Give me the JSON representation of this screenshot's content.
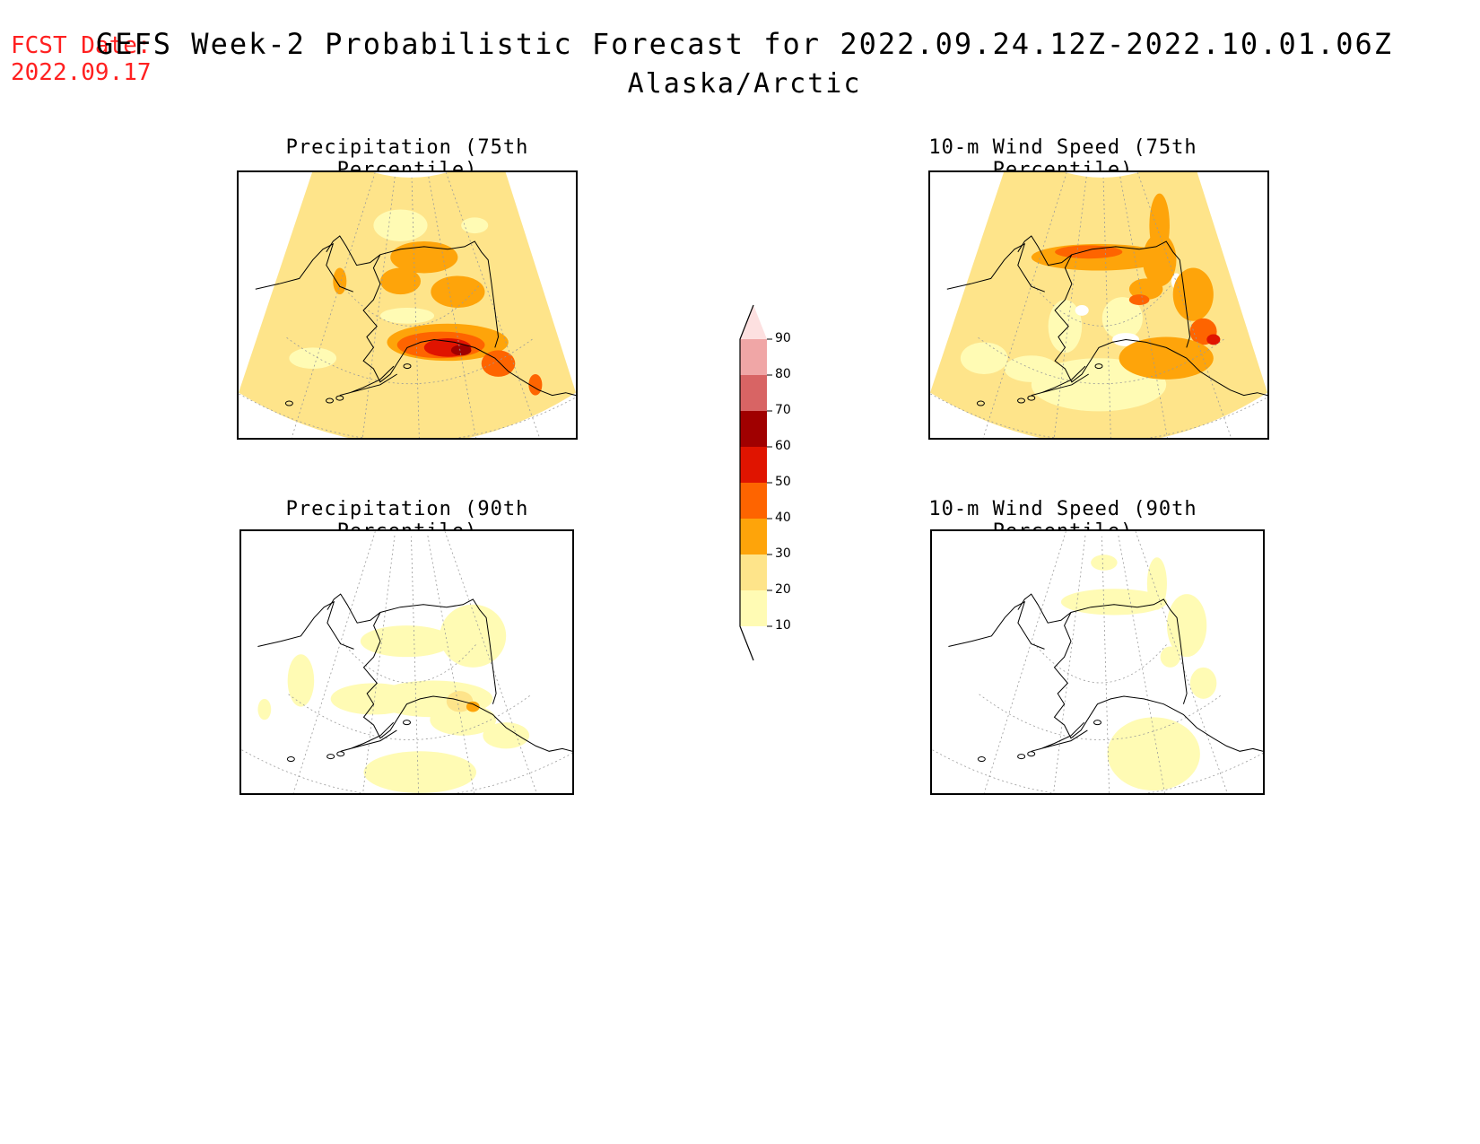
{
  "fcst_date": {
    "label": "FCST Date:",
    "value": "2022.09.17"
  },
  "title": "GEFS Week-2 Probabilistic Forecast for 2022.09.24.12Z-2022.10.01.06Z",
  "subtitle": "Alaska/Arctic",
  "panels": [
    {
      "title": "Precipitation (75th Percentile)",
      "intensity": "high-precip"
    },
    {
      "title": "10-m Wind Speed (75th Percentile)",
      "intensity": "high-wind"
    },
    {
      "title": "Precipitation (90th Percentile)",
      "intensity": "low-precip"
    },
    {
      "title": "10-m Wind Speed (90th Percentile)",
      "intensity": "low-wind"
    }
  ],
  "colorbar": {
    "levels": [
      "10",
      "20",
      "30",
      "40",
      "50",
      "60",
      "70",
      "80",
      "90"
    ],
    "colors": [
      "#fffbb4",
      "#fee48a",
      "#fea40a",
      "#fe6400",
      "#e01400",
      "#a00000",
      "#d86464",
      "#f0a6a6",
      "#fde0e0"
    ],
    "white": "#ffffff"
  }
}
